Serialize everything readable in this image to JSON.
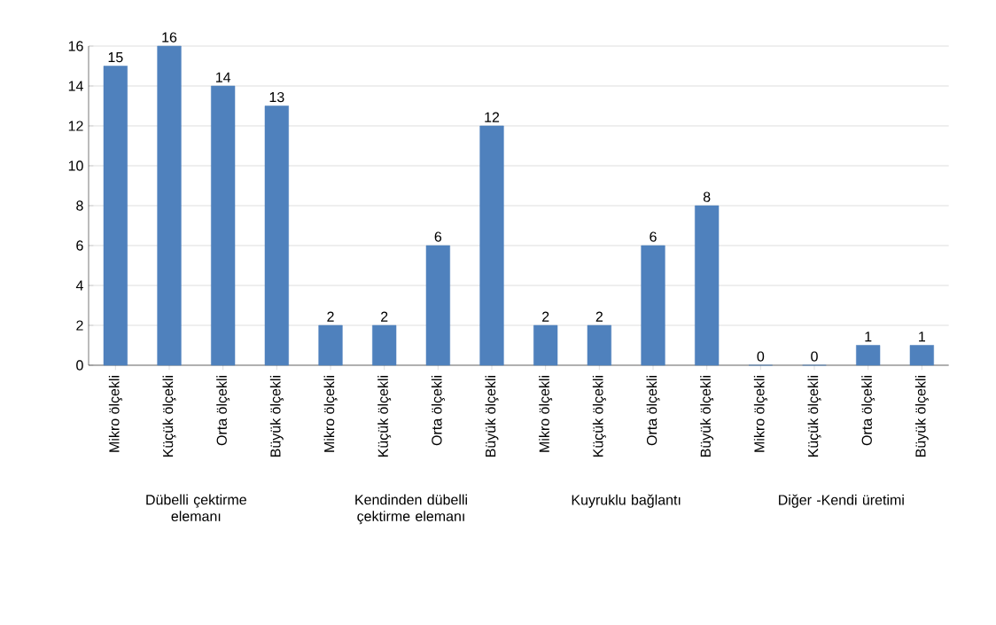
{
  "chart_data": {
    "type": "bar",
    "categories": [
      "Mikro ölçekli",
      "Küçük ölçekli",
      "Orta ölçekli",
      "Büyük ölçekli",
      "Mikro ölçekli",
      "Küçük ölçekli",
      "Orta ölçekli",
      "Büyük ölçekli",
      "Mikro ölçekli",
      "Küçük ölçekli",
      "Orta ölçekli",
      "Büyük ölçekli",
      "Mikro ölçekli",
      "Küçük ölçekli",
      "Orta ölçekli",
      "Büyük ölçekli"
    ],
    "values": [
      15,
      16,
      14,
      13,
      2,
      2,
      6,
      12,
      2,
      2,
      6,
      8,
      0,
      0,
      1,
      1
    ],
    "color": "#4f81bd",
    "ylim": [
      0,
      16
    ],
    "yticks": [
      0,
      2,
      4,
      6,
      8,
      10,
      12,
      14,
      16
    ],
    "grid": "y",
    "data_labels": true,
    "annotations": [
      "Dübelli çektirme elemanı",
      "Kendinden dübelli çektirme elemanı",
      "Kuyruklu bağlantı",
      "Diğer -Kendi üretimi"
    ]
  }
}
